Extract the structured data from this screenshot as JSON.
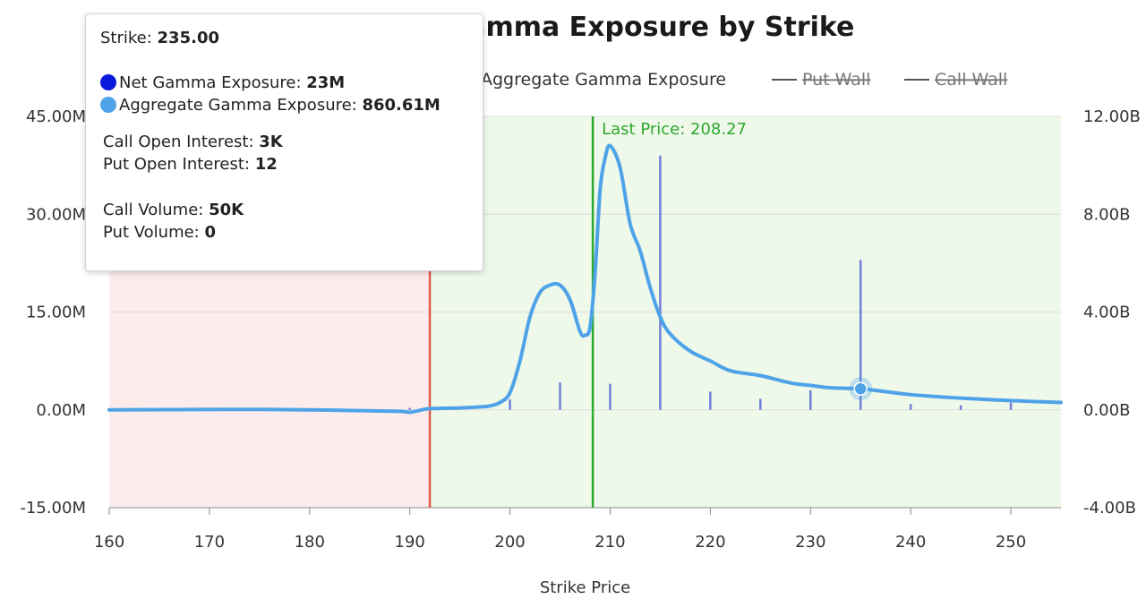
{
  "chart_data": {
    "type": "line",
    "title": "Gamma Exposure by Strike",
    "xlabel": "Strike Price",
    "xlim": [
      160,
      255
    ],
    "xticks": [
      160,
      170,
      180,
      190,
      200,
      210,
      220,
      230,
      240,
      250
    ],
    "y_left": {
      "ticks": [
        "45.00M",
        "30.00M",
        "15.00M",
        "0.00M",
        "-15.00M"
      ],
      "range": [
        -15,
        45
      ],
      "unit": "M"
    },
    "y_right": {
      "ticks": [
        "12.00B",
        "8.00B",
        "4.00B",
        "0.00B",
        "-4.00B"
      ],
      "range": [
        -4,
        12
      ],
      "unit": "B"
    },
    "legend": [
      "Aggregate Gamma Exposure",
      "Put Wall",
      "Call Wall"
    ],
    "legend_placement": "top",
    "put_wall": 192,
    "call_wall": 208.27,
    "last_price_label": "Last Price: 208.27",
    "shade": {
      "negative_color": "#fdecec",
      "positive_color": "#eef9ea"
    },
    "series": [
      {
        "name": "Net Gamma Exposure",
        "axis": "left",
        "style": "bars",
        "color": "#5b6bd6",
        "points": [
          [
            190,
            0.3
          ],
          [
            200,
            1.6
          ],
          [
            205,
            4.2
          ],
          [
            210,
            4.0
          ],
          [
            215,
            39.0
          ],
          [
            220,
            2.8
          ],
          [
            225,
            1.7
          ],
          [
            230,
            3.0
          ],
          [
            235,
            23
          ],
          [
            240,
            0.9
          ],
          [
            245,
            0.7
          ],
          [
            250,
            1.1
          ]
        ]
      },
      {
        "name": "Aggregate Gamma Exposure",
        "axis": "right",
        "style": "line",
        "color": "#4ea3e8",
        "points": [
          [
            160,
            0
          ],
          [
            175,
            0.02
          ],
          [
            185,
            -0.03
          ],
          [
            189,
            -0.06
          ],
          [
            190,
            -0.1
          ],
          [
            191,
            -0.02
          ],
          [
            192,
            0.05
          ],
          [
            195,
            0.08
          ],
          [
            197,
            0.12
          ],
          [
            198,
            0.16
          ],
          [
            199,
            0.3
          ],
          [
            200,
            0.7
          ],
          [
            201,
            2.0
          ],
          [
            202,
            3.8
          ],
          [
            203,
            4.8
          ],
          [
            204,
            5.1
          ],
          [
            205,
            5.1
          ],
          [
            206,
            4.5
          ],
          [
            207,
            3.2
          ],
          [
            207.5,
            3.05
          ],
          [
            208,
            3.4
          ],
          [
            208.5,
            5.6
          ],
          [
            209,
            9.0
          ],
          [
            209.5,
            10.3
          ],
          [
            210,
            10.8
          ],
          [
            211,
            9.9
          ],
          [
            212,
            7.6
          ],
          [
            213,
            6.5
          ],
          [
            214,
            5.0
          ],
          [
            215,
            3.8
          ],
          [
            216,
            3.1
          ],
          [
            218,
            2.4
          ],
          [
            220,
            2.0
          ],
          [
            222,
            1.6
          ],
          [
            225,
            1.4
          ],
          [
            228,
            1.1
          ],
          [
            230,
            1.0
          ],
          [
            232,
            0.9
          ],
          [
            235,
            0.86
          ],
          [
            238,
            0.72
          ],
          [
            240,
            0.62
          ],
          [
            245,
            0.48
          ],
          [
            250,
            0.38
          ],
          [
            255,
            0.3
          ]
        ]
      }
    ],
    "hover_marker": {
      "x": 235,
      "y": 0.86
    }
  },
  "tooltip": {
    "strike_label": "Strike: ",
    "strike_value": "235.00",
    "net_label": "Net Gamma Exposure: ",
    "net_value": "23M",
    "net_color": "#0a1adf",
    "agg_label": "Aggregate Gamma Exposure: ",
    "agg_value": "860.61M",
    "agg_color": "#4ea3e8",
    "call_oi_label": "Call Open Interest: ",
    "call_oi_value": "3K",
    "put_oi_label": "Put Open Interest: ",
    "put_oi_value": "12",
    "call_vol_label": "Call Volume: ",
    "call_vol_value": "50K",
    "put_vol_label": "Put Volume: ",
    "put_vol_value": "0"
  }
}
